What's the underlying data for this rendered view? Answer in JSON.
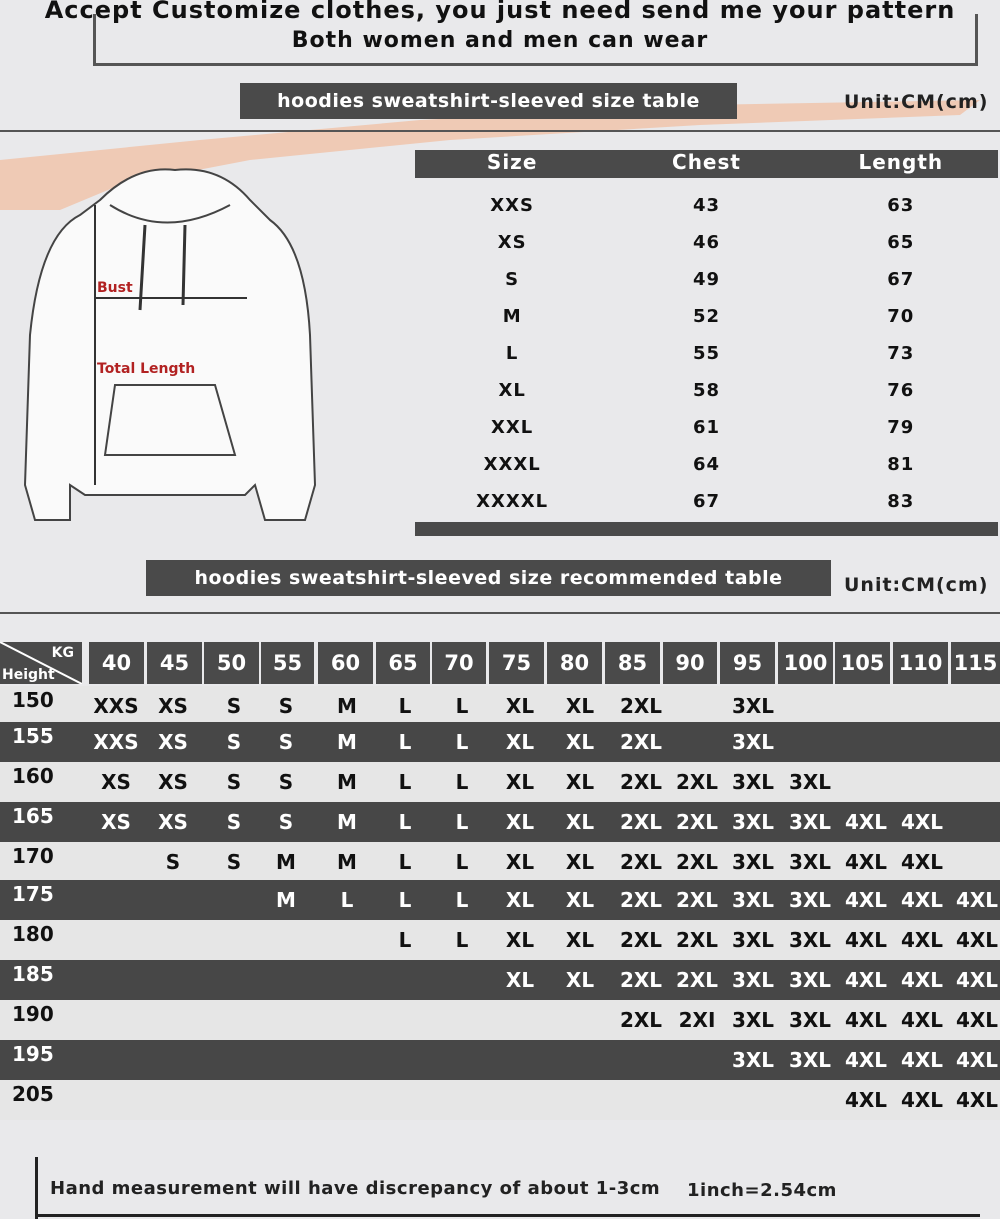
{
  "banner": {
    "line1": "Accept Customize clothes, you just need send me your pattern",
    "line2": "Both women and men can wear"
  },
  "size_section": {
    "title": "hoodies sweatshirt-sleeved size  table",
    "unit": "Unit:CM(cm)"
  },
  "diagram": {
    "bust_label": "Bust",
    "length_label": "Total Length"
  },
  "size_table": {
    "headers": [
      "Size",
      "Chest",
      "Length"
    ],
    "rows": [
      [
        "XXS",
        "43",
        "63"
      ],
      [
        "XS",
        "46",
        "65"
      ],
      [
        "S",
        "49",
        "67"
      ],
      [
        "M",
        "52",
        "70"
      ],
      [
        "L",
        "55",
        "73"
      ],
      [
        "XL",
        "58",
        "76"
      ],
      [
        "XXL",
        "61",
        "79"
      ],
      [
        "XXXL",
        "64",
        "81"
      ],
      [
        "XXXXL",
        "67",
        "83"
      ]
    ]
  },
  "rec_section": {
    "title": "hoodies sweatshirt-sleeved size recommended table",
    "unit": "Unit:CM(cm)"
  },
  "rec_table": {
    "corner_kg": "KG",
    "corner_height": "Height",
    "weights": [
      "40",
      "45",
      "50",
      "55",
      "60",
      "65",
      "70",
      "75",
      "80",
      "85",
      "90",
      "95",
      "100",
      "105",
      "110",
      "115"
    ],
    "rows": [
      {
        "height": "150",
        "sizes": [
          "XXS",
          "XS",
          "S",
          "S",
          "M",
          "L",
          "L",
          "XL",
          "XL",
          "2XL",
          "",
          "3XL",
          "",
          "",
          "",
          ""
        ]
      },
      {
        "height": "155",
        "sizes": [
          "XXS",
          "XS",
          "S",
          "S",
          "M",
          "L",
          "L",
          "XL",
          "XL",
          "2XL",
          "",
          "3XL",
          "",
          "",
          "",
          ""
        ]
      },
      {
        "height": "160",
        "sizes": [
          "XS",
          "XS",
          "S",
          "S",
          "M",
          "L",
          "L",
          "XL",
          "XL",
          "2XL",
          "2XL",
          "3XL",
          "3XL",
          "",
          "",
          ""
        ]
      },
      {
        "height": "165",
        "sizes": [
          "XS",
          "XS",
          "S",
          "S",
          "M",
          "L",
          "L",
          "XL",
          "XL",
          "2XL",
          "2XL",
          "3XL",
          "3XL",
          "4XL",
          "4XL",
          ""
        ]
      },
      {
        "height": "170",
        "sizes": [
          "",
          "S",
          "S",
          "M",
          "M",
          "L",
          "L",
          "XL",
          "XL",
          "2XL",
          "2XL",
          "3XL",
          "3XL",
          "4XL",
          "4XL",
          ""
        ]
      },
      {
        "height": "175",
        "sizes": [
          "",
          "",
          "",
          "M",
          "L",
          "L",
          "L",
          "XL",
          "XL",
          "2XL",
          "2XL",
          "3XL",
          "3XL",
          "4XL",
          "4XL",
          "4XL"
        ]
      },
      {
        "height": "180",
        "sizes": [
          "",
          "",
          "",
          "",
          "",
          "L",
          "L",
          "XL",
          "XL",
          "2XL",
          "2XL",
          "3XL",
          "3XL",
          "4XL",
          "4XL",
          "4XL"
        ]
      },
      {
        "height": "185",
        "sizes": [
          "",
          "",
          "",
          "",
          "",
          "",
          "",
          "XL",
          "XL",
          "2XL",
          "2XL",
          "3XL",
          "3XL",
          "4XL",
          "4XL",
          "4XL"
        ]
      },
      {
        "height": "190",
        "sizes": [
          "",
          "",
          "",
          "",
          "",
          "",
          "",
          "",
          "",
          "2XL",
          "2XI",
          "3XL",
          "3XL",
          "4XL",
          "4XL",
          "4XL"
        ]
      },
      {
        "height": "195",
        "sizes": [
          "",
          "",
          "",
          "",
          "",
          "",
          "",
          "",
          "",
          "",
          "",
          "3XL",
          "3XL",
          "4XL",
          "4XL",
          "4XL"
        ]
      },
      {
        "height": "205",
        "sizes": [
          "",
          "",
          "",
          "",
          "",
          "",
          "",
          "",
          "",
          "",
          "",
          "",
          "",
          "4XL",
          "4XL",
          "4XL"
        ]
      }
    ]
  },
  "footer": {
    "note": "Hand measurement will have discrepancy of about  1-3cm",
    "conversion": "1inch=2.54cm"
  },
  "colors": {
    "dark": "#4a4a4a",
    "light": "#e6e6e6",
    "accent_red": "#b22222",
    "splash": "#f0b89a"
  }
}
